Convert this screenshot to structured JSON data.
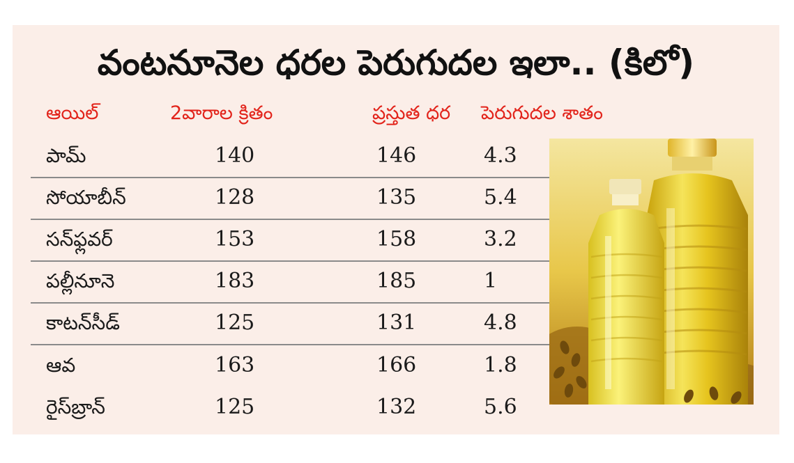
{
  "title": "వంటనూనెల ధరల పెరుగుదల ఇలా.. (కిలో)",
  "headers": {
    "oil": "ఆయిల్",
    "two_weeks_ago": "2వారాల క్రితం",
    "current_price": "ప్రస్తుత ధర",
    "increase_percent": "పెరుగుదల శాతం"
  },
  "rows": [
    {
      "oil": "పామ్",
      "two_weeks_ago": "140",
      "current_price": "146",
      "increase_percent": "4.3"
    },
    {
      "oil": "సోయాబీన్",
      "two_weeks_ago": "128",
      "current_price": "135",
      "increase_percent": "5.4"
    },
    {
      "oil": "సన్‌ఫ్లవర్",
      "two_weeks_ago": "153",
      "current_price": "158",
      "increase_percent": "3.2"
    },
    {
      "oil": "పల్లీనూనె",
      "two_weeks_ago": "183",
      "current_price": "185",
      "increase_percent": "1"
    },
    {
      "oil": "కాటన్‌సీడ్",
      "two_weeks_ago": "125",
      "current_price": "131",
      "increase_percent": "4.8"
    },
    {
      "oil": "ఆవ",
      "two_weeks_ago": "163",
      "current_price": "166",
      "increase_percent": "1.8"
    },
    {
      "oil": "రైస్‌బ్రాన్",
      "two_weeks_ago": "125",
      "current_price": "132",
      "increase_percent": "5.6"
    }
  ],
  "colors": {
    "panel_bg": "#fbeee8",
    "header_text": "#e2231a",
    "body_text": "#1a1a1a",
    "divider": "#8a8a8a"
  }
}
